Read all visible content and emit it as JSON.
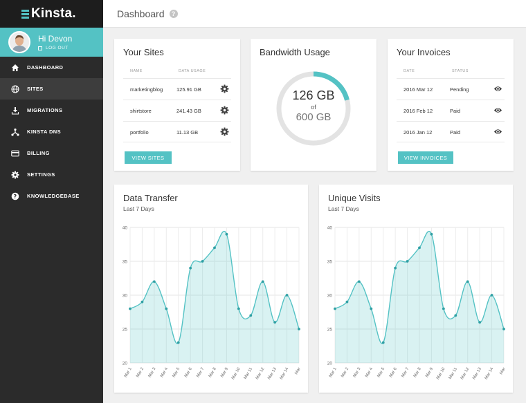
{
  "app": {
    "logo_text": "Kinsta.",
    "accent": "#54c2c4"
  },
  "user": {
    "greeting": "Hi Devon",
    "logout": "LOG OUT"
  },
  "nav": [
    {
      "label": "DASHBOARD",
      "icon": "home-icon"
    },
    {
      "label": "SITES",
      "icon": "globe-icon",
      "active": true
    },
    {
      "label": "MIGRATIONS",
      "icon": "download-icon"
    },
    {
      "label": "KINSTA DNS",
      "icon": "network-icon"
    },
    {
      "label": "BILLING",
      "icon": "credit-card-icon"
    },
    {
      "label": "SETTINGS",
      "icon": "gear-icon"
    },
    {
      "label": "KNOWLEDGEBASE",
      "icon": "help-icon"
    }
  ],
  "header": {
    "title": "Dashboard",
    "help": "?"
  },
  "sites": {
    "title": "Your Sites",
    "col_name": "NAME",
    "col_usage": "DATA USAGE",
    "rows": [
      {
        "name": "marketingblog",
        "usage": "125.91 GB"
      },
      {
        "name": "shirtstore",
        "usage": "241.43 GB"
      },
      {
        "name": "portfolio",
        "usage": "11.13 GB"
      }
    ],
    "button": "VIEW SITES"
  },
  "bandwidth": {
    "title": "Bandwidth Usage",
    "used": "126 GB",
    "of": "of",
    "total": "600 GB",
    "fraction": 0.21
  },
  "invoices": {
    "title": "Your Invoices",
    "col_date": "DATE",
    "col_status": "STATUS",
    "rows": [
      {
        "date": "2016 Mar 12",
        "status": "Pending"
      },
      {
        "date": "2016 Feb 12",
        "status": "Paid"
      },
      {
        "date": "2016 Jan 12",
        "status": "Paid"
      }
    ],
    "button": "VIEW INVOICES"
  },
  "chart_data": [
    {
      "type": "area",
      "title": "Data Transfer",
      "subtitle": "Last 7 Days",
      "categories": [
        "Mar 1",
        "Mar 2",
        "Mar 3",
        "Mar 4",
        "Mar 5",
        "Mar 6",
        "Mar 7",
        "Mar 8",
        "Mar 9",
        "Mar 10",
        "Mar 11",
        "Mar 12",
        "Mar 13",
        "Mar 14",
        "Mar"
      ],
      "values": [
        28,
        29,
        32,
        28,
        23,
        34,
        35,
        37,
        39,
        28,
        27,
        32,
        26,
        30,
        25
      ],
      "ylim": [
        20,
        40
      ],
      "yticks": [
        20,
        25,
        30,
        35,
        40
      ],
      "grid": true
    },
    {
      "type": "area",
      "title": "Unique Visits",
      "subtitle": "Last 7 Days",
      "categories": [
        "Mar 1",
        "Mar 2",
        "Mar 3",
        "Mar 4",
        "Mar 5",
        "Mar 6",
        "Mar 7",
        "Mar 8",
        "Mar 9",
        "Mar 10",
        "Mar 11",
        "Mar 12",
        "Mar 13",
        "Mar 14",
        "Mar"
      ],
      "values": [
        28,
        29,
        32,
        28,
        23,
        34,
        35,
        37,
        39,
        28,
        27,
        32,
        26,
        30,
        25
      ],
      "ylim": [
        20,
        40
      ],
      "yticks": [
        20,
        25,
        30,
        35,
        40
      ],
      "grid": true
    }
  ]
}
